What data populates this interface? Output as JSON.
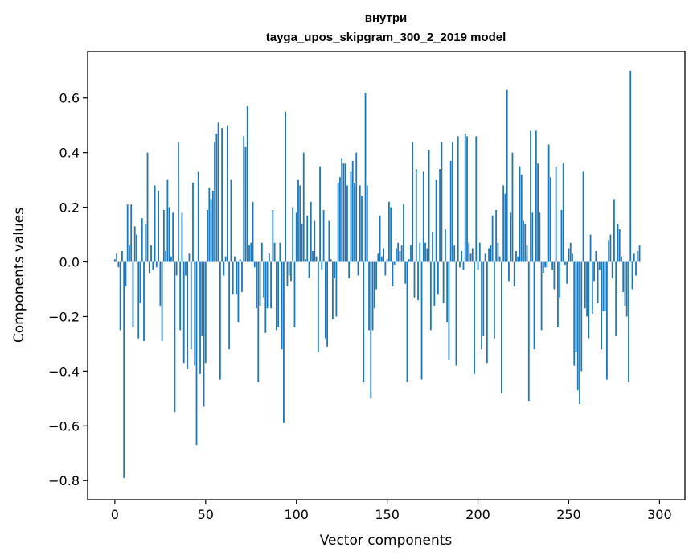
{
  "chart_data": {
    "type": "bar",
    "title": "внутри",
    "subtitle": "tayga_upos_skipgram_300_2_2019 model",
    "xlabel": "Vector components",
    "ylabel": "Components values",
    "xlim": [
      -15,
      314
    ],
    "ylim": [
      -0.87,
      0.77
    ],
    "xticks": [
      0,
      50,
      100,
      150,
      200,
      250,
      300
    ],
    "yticks": [
      -0.8,
      -0.6,
      -0.4,
      -0.2,
      0.0,
      0.2,
      0.4,
      0.6
    ],
    "ytick_labels": [
      "−0.8",
      "−0.6",
      "−0.4",
      "−0.2",
      "0.0",
      "0.2",
      "0.4",
      "0.6"
    ],
    "xtick_labels": [
      "0",
      "50",
      "100",
      "150",
      "200",
      "250",
      "300"
    ],
    "bar_color": "#1f77b4",
    "grid": false,
    "values": [
      0.01,
      0.03,
      -0.02,
      -0.25,
      0.04,
      -0.79,
      -0.09,
      0.21,
      0.06,
      0.21,
      -0.24,
      0.13,
      0.1,
      -0.28,
      -0.15,
      0.16,
      -0.29,
      0.14,
      0.4,
      -0.04,
      0.06,
      -0.03,
      0.28,
      -0.02,
      0.26,
      -0.16,
      -0.29,
      0.19,
      0.04,
      0.3,
      0.2,
      0.02,
      0.18,
      -0.55,
      -0.05,
      0.44,
      -0.25,
      0.18,
      -0.37,
      -0.05,
      -0.39,
      0.03,
      -0.32,
      0.29,
      -0.38,
      -0.67,
      0.33,
      -0.41,
      -0.27,
      -0.53,
      -0.37,
      0.19,
      0.27,
      0.23,
      0.26,
      0.44,
      0.47,
      0.51,
      -0.43,
      0.49,
      -0.05,
      0.02,
      0.5,
      -0.32,
      0.3,
      -0.12,
      0.02,
      -0.12,
      -0.22,
      0.01,
      -0.11,
      0.46,
      0.42,
      0.57,
      0.06,
      0.07,
      0.22,
      -0.02,
      -0.17,
      -0.44,
      -0.16,
      0.07,
      -0.13,
      -0.26,
      -0.17,
      0.03,
      -0.17,
      0.19,
      0.07,
      -0.25,
      -0.24,
      0.07,
      -0.32,
      -0.59,
      0.55,
      -0.09,
      -0.05,
      -0.07,
      0.2,
      -0.24,
      0.18,
      0.3,
      0.28,
      0.14,
      0.4,
      0.01,
      0.17,
      -0.06,
      0.22,
      0.04,
      0.15,
      0.02,
      -0.33,
      0.35,
      -0.03,
      0.19,
      -0.28,
      -0.31,
      0.15,
      0.01,
      -0.21,
      -0.06,
      -0.2,
      0.29,
      0.31,
      0.38,
      0.36,
      0.36,
      0.28,
      -0.06,
      0.33,
      0.37,
      0.29,
      0.4,
      -0.05,
      0.28,
      0.24,
      -0.44,
      0.62,
      0.28,
      -0.25,
      -0.5,
      -0.25,
      -0.17,
      -0.1,
      0.03,
      0.17,
      0.02,
      0.05,
      -0.05,
      0.01,
      0.22,
      0.2,
      -0.09,
      -0.01,
      0.05,
      0.07,
      0.04,
      0.06,
      0.21,
      -0.08,
      -0.44,
      0.01,
      0.06,
      0.44,
      -0.13,
      0.34,
      -0.14,
      0.07,
      -0.43,
      0.33,
      0.07,
      0.05,
      0.41,
      -0.25,
      0.11,
      -0.16,
      0.3,
      -0.12,
      0.34,
      0.44,
      -0.15,
      0.12,
      -0.22,
      -0.36,
      0.37,
      0.44,
      0.06,
      -0.38,
      0.46,
      -0.02,
      0.04,
      -0.03,
      0.47,
      0.46,
      0.07,
      0.03,
      0.05,
      -0.41,
      0.46,
      -0.03,
      0.07,
      -0.32,
      -0.27,
      0.03,
      -0.37,
      0.05,
      0.06,
      0.17,
      -0.28,
      0.19,
      0.07,
      0.02,
      -0.48,
      0.28,
      0.25,
      0.63,
      -0.07,
      0.18,
      0.4,
      -0.09,
      0.04,
      0.02,
      0.35,
      0.32,
      0.15,
      0.14,
      0.06,
      -0.51,
      0.48,
      0.18,
      -0.32,
      0.48,
      0.36,
      0.18,
      -0.25,
      -0.04,
      -0.02,
      -0.02,
      0.43,
      0.31,
      -0.03,
      -0.1,
      0.35,
      -0.24,
      -0.13,
      0.19,
      0.36,
      -0.01,
      -0.08,
      0.05,
      0.07,
      0.03,
      -0.38,
      -0.33,
      -0.47,
      -0.52,
      -0.4,
      0.33,
      -0.17,
      -0.2,
      -0.28,
      0.1,
      -0.19,
      -0.07,
      0.04,
      -0.15,
      -0.03,
      -0.32,
      -0.18,
      -0.18,
      -0.43,
      0.08,
      0.1,
      -0.06,
      0.23,
      -0.27,
      0.14,
      0.12,
      0.02,
      -0.11,
      -0.16,
      -0.2,
      -0.44,
      0.7,
      -0.1,
      0.03,
      -0.05,
      0.04,
      0.06
    ]
  }
}
